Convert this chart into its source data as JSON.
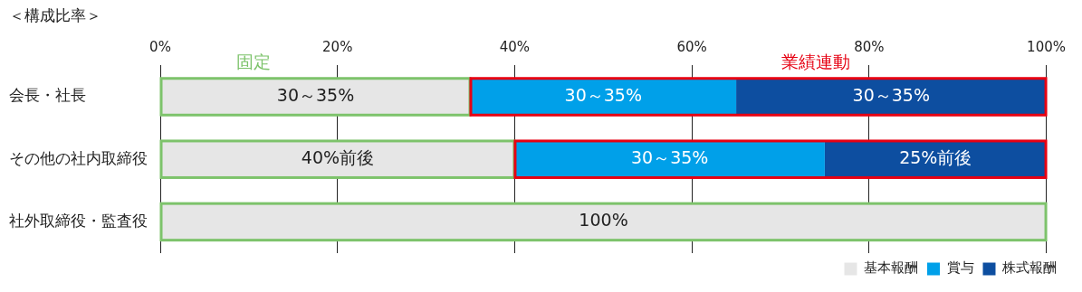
{
  "chart_data": {
    "type": "bar",
    "orientation": "horizontal",
    "stacked": true,
    "title": "＜構成比率＞",
    "categories": [
      "会長・社長",
      "その他の社内取締役",
      "社外取締役・監査役"
    ],
    "series": [
      {
        "name": "基本報酬",
        "color": "#e6e6e6",
        "values": [
          35,
          40,
          100
        ],
        "value_labels": [
          "30～35%",
          "40%前後",
          "100%"
        ]
      },
      {
        "name": "賞与",
        "color": "#00a0e9",
        "values": [
          30,
          35,
          0
        ],
        "value_labels": [
          "30～35%",
          "30～35%",
          null
        ]
      },
      {
        "name": "株式報酬",
        "color": "#0d4ea0",
        "values": [
          35,
          25,
          0
        ],
        "value_labels": [
          "30～35%",
          "25%前後",
          null
        ]
      }
    ],
    "xlim": [
      0,
      100
    ],
    "xticks": [
      {
        "value": 0,
        "label": "0%"
      },
      {
        "value": 20,
        "label": "20%"
      },
      {
        "value": 40,
        "label": "40%"
      },
      {
        "value": 60,
        "label": "60%"
      },
      {
        "value": 80,
        "label": "80%"
      },
      {
        "value": 100,
        "label": "100%"
      }
    ],
    "annotations": [
      "固定",
      "業績連動"
    ],
    "grid": "x",
    "legend": "bottom right"
  }
}
